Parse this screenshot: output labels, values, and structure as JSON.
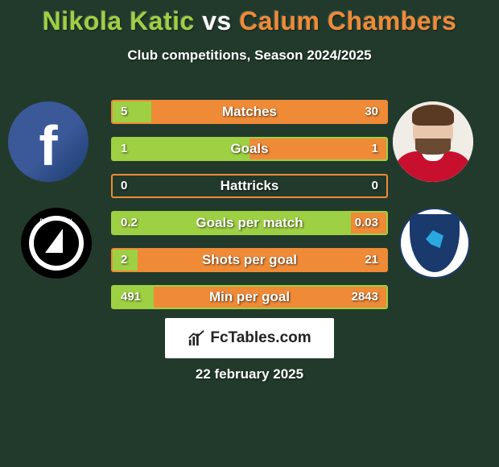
{
  "background_color": "#223a2c",
  "text_color": "#ffffff",
  "title": {
    "left_name": "Nikola Katic",
    "vs": "vs",
    "right_name": "Calum Chambers",
    "left_color": "#9ed043",
    "right_color": "#ef8a37",
    "fontsize": 32
  },
  "subtitle": "Club competitions, Season 2024/2025",
  "players": {
    "left": {
      "avatar_type": "facebook",
      "club": "Plymouth"
    },
    "right": {
      "avatar_type": "player-photo",
      "club": "Cardiff"
    }
  },
  "bars_style": {
    "left_color": "#9ed043",
    "right_color": "#ef8a37",
    "border_color_even": "#ef8a37",
    "border_color_odd": "#9ed043",
    "height": 30,
    "gap": 16,
    "label_fontsize": 17,
    "value_fontsize": 15
  },
  "bars": [
    {
      "label": "Matches",
      "left": "5",
      "right": "30",
      "left_pct": 14,
      "right_pct": 86
    },
    {
      "label": "Goals",
      "left": "1",
      "right": "1",
      "left_pct": 50,
      "right_pct": 50
    },
    {
      "label": "Hattricks",
      "left": "0",
      "right": "0",
      "left_pct": 0,
      "right_pct": 0
    },
    {
      "label": "Goals per match",
      "left": "0.2",
      "right": "0.03",
      "left_pct": 87,
      "right_pct": 13
    },
    {
      "label": "Shots per goal",
      "left": "2",
      "right": "21",
      "left_pct": 9,
      "right_pct": 91
    },
    {
      "label": "Min per goal",
      "left": "491",
      "right": "2843",
      "left_pct": 15,
      "right_pct": 85
    }
  ],
  "branding": "FcTables.com",
  "date": "22 february 2025"
}
